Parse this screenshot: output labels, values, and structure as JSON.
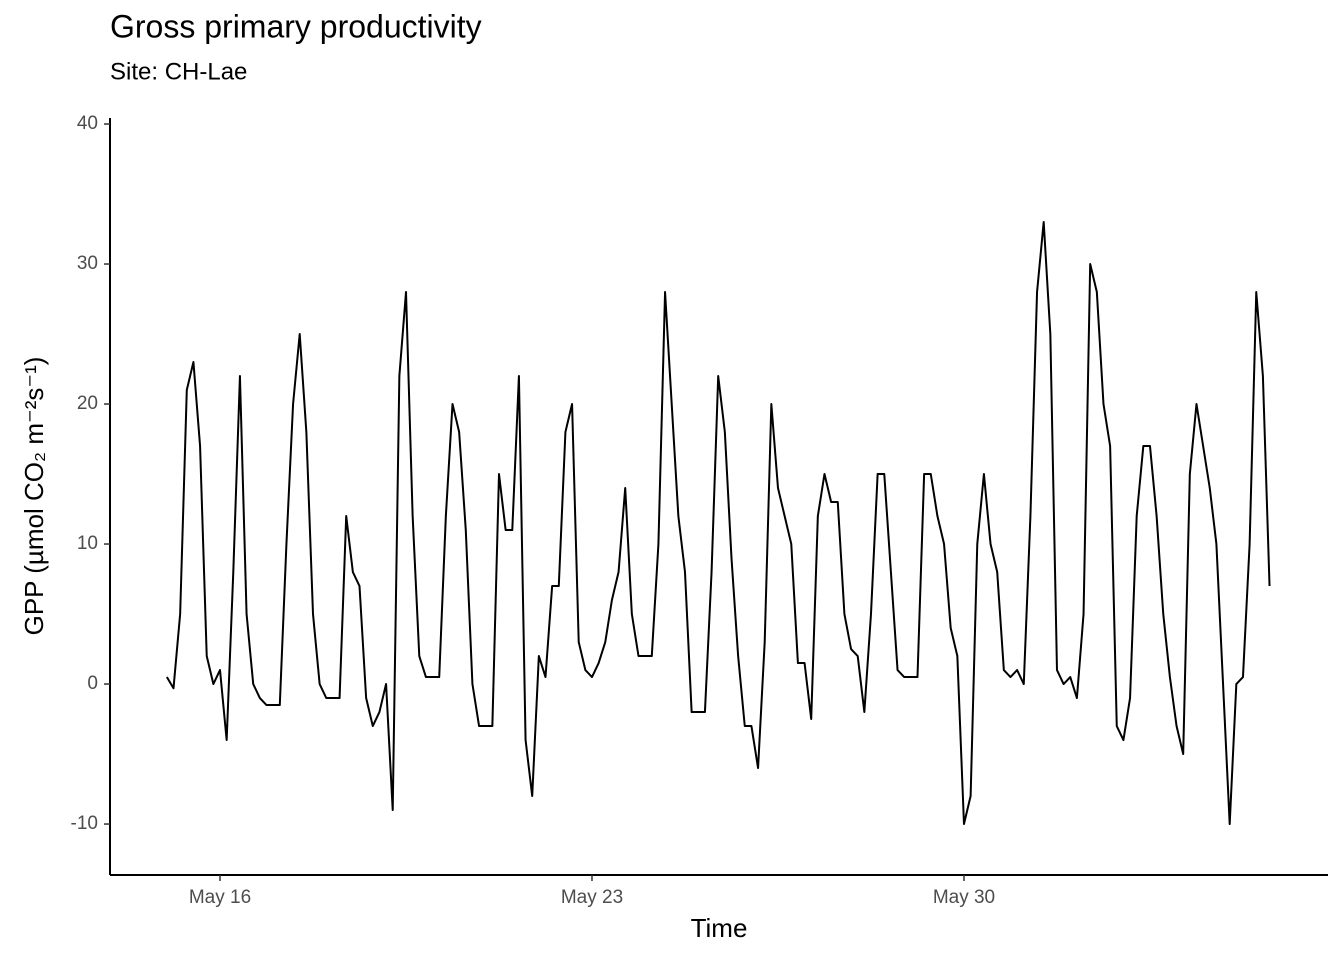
{
  "chart_data": {
    "type": "line",
    "title": "Gross primary productivity",
    "subtitle": "Site: CH-Lae",
    "x_label": "Time",
    "y_label": "GPP (µmol CO₂ m⁻²s⁻¹)",
    "x": [
      15,
      15.125,
      15.25,
      15.375,
      15.5,
      15.625,
      15.75,
      15.875,
      16,
      16.125,
      16.25,
      16.375,
      16.5,
      16.625,
      16.75,
      16.875,
      17,
      17.125,
      17.25,
      17.375,
      17.5,
      17.625,
      17.75,
      17.875,
      18,
      18.125,
      18.25,
      18.375,
      18.5,
      18.625,
      18.75,
      18.875,
      19,
      19.125,
      19.25,
      19.375,
      19.5,
      19.625,
      19.75,
      19.875,
      20,
      20.125,
      20.25,
      20.375,
      20.5,
      20.625,
      20.75,
      20.875,
      21,
      21.125,
      21.25,
      21.375,
      21.5,
      21.625,
      21.75,
      21.875,
      22,
      22.125,
      22.25,
      22.375,
      22.5,
      22.625,
      22.75,
      22.875,
      23,
      23.125,
      23.25,
      23.375,
      23.5,
      23.625,
      23.75,
      23.875,
      24,
      24.125,
      24.25,
      24.375,
      24.5,
      24.625,
      24.75,
      24.875,
      25,
      25.125,
      25.25,
      25.375,
      25.5,
      25.625,
      25.75,
      25.875,
      26,
      26.125,
      26.25,
      26.375,
      26.5,
      26.625,
      26.75,
      26.875,
      27,
      27.125,
      27.25,
      27.375,
      27.5,
      27.625,
      27.75,
      27.875,
      28,
      28.125,
      28.25,
      28.375,
      28.5,
      28.625,
      28.75,
      28.875,
      29,
      29.125,
      29.25,
      29.375,
      29.5,
      29.625,
      29.75,
      29.875,
      30,
      30.125,
      30.25,
      30.375,
      30.5,
      30.625,
      30.75,
      30.875,
      31,
      31.125,
      31.25,
      31.375,
      31.5,
      31.625,
      31.75,
      31.875,
      32,
      32.125,
      32.25,
      32.375,
      32.5,
      32.625,
      32.75,
      32.875,
      33,
      33.125,
      33.25,
      33.375,
      33.5,
      33.625,
      33.75,
      33.875,
      34,
      34.125,
      34.25,
      34.375,
      34.5,
      34.625,
      34.75,
      34.875,
      35,
      35.125,
      35.25,
      35.375,
      35.5,
      35.625,
      35.75
    ],
    "series": [
      {
        "color": "#000000",
        "values": [
          0.5,
          -0.3,
          5,
          21,
          23,
          17,
          2,
          0,
          1,
          -4,
          8,
          22,
          5,
          0,
          -1,
          -1.5,
          -1.5,
          -1.5,
          10,
          20,
          25,
          18,
          5,
          0,
          -1,
          -1,
          -1,
          12,
          8,
          7,
          -1,
          -3,
          -2,
          0,
          -9,
          22,
          28,
          12,
          2,
          0.5,
          0.5,
          0.5,
          12,
          20,
          18,
          11,
          0,
          -3,
          -3,
          -3,
          15,
          11,
          11,
          22,
          -4,
          -8,
          2,
          0.5,
          7,
          7,
          18,
          20,
          3,
          1,
          0.5,
          1.5,
          3,
          6,
          8,
          14,
          5,
          2,
          2,
          2,
          10,
          28,
          20,
          12,
          8,
          -2,
          -2,
          -2,
          8,
          22,
          18,
          9,
          2,
          -3,
          -3,
          -6,
          3,
          20,
          14,
          12,
          10,
          1.5,
          1.5,
          -2.5,
          12,
          15,
          13,
          13,
          5,
          2.5,
          2,
          -2,
          5,
          15,
          15,
          8,
          1,
          0.5,
          0.5,
          0.5,
          15,
          15,
          12,
          10,
          4,
          2,
          -10,
          -8,
          10,
          15,
          10,
          8,
          1,
          0.5,
          1,
          0,
          12,
          28,
          33,
          25,
          1,
          0,
          0.5,
          -1,
          5,
          30,
          28,
          20,
          17,
          -3,
          -4,
          -1,
          12,
          17,
          17,
          12,
          5,
          0.5,
          -3,
          -5,
          15,
          20,
          17,
          14,
          10,
          0,
          -10,
          0,
          0.5,
          10,
          28,
          22,
          7
        ]
      }
    ],
    "xlim": [
      13.93,
      36.85
    ],
    "xticks": [
      {
        "value": 16,
        "label": "May 16"
      },
      {
        "value": 23,
        "label": "May 23"
      },
      {
        "value": 30,
        "label": "May 30"
      }
    ],
    "ylim": [
      -13.64,
      40.43
    ],
    "yticks": [
      -10,
      0,
      10,
      20,
      30,
      40
    ],
    "grid": false
  }
}
